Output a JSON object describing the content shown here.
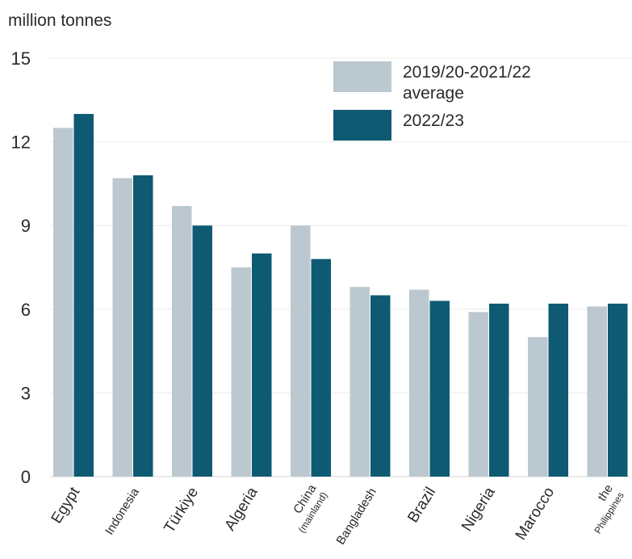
{
  "chart_data": {
    "type": "bar",
    "ylabel": "million tonnes",
    "ylim": [
      0,
      15
    ],
    "yticks": [
      0,
      3,
      6,
      9,
      12,
      15
    ],
    "grid": true,
    "legend_position": "top-right",
    "categories": [
      [
        "Egypt"
      ],
      [
        "Indonesia"
      ],
      [
        "Türkiye"
      ],
      [
        "Algeria"
      ],
      [
        "China",
        "(mainland)"
      ],
      [
        "Bangladesh"
      ],
      [
        "Brazil"
      ],
      [
        "Nigeria"
      ],
      [
        "Marocco"
      ],
      [
        "the",
        "Philippines"
      ]
    ],
    "series": [
      {
        "name": "2019/20-2021/22 average",
        "legend_lines": [
          "2019/20-2021/22",
          "average"
        ],
        "color": "#bcc8cf",
        "values": [
          12.5,
          10.7,
          9.7,
          7.5,
          9.0,
          6.8,
          6.7,
          5.9,
          5.0,
          6.1
        ]
      },
      {
        "name": "2022/23",
        "legend_lines": [
          "2022/23"
        ],
        "color": "#0e5a73",
        "values": [
          13.0,
          10.8,
          9.0,
          8.0,
          7.8,
          6.5,
          6.3,
          6.2,
          6.2,
          6.2
        ]
      }
    ]
  }
}
